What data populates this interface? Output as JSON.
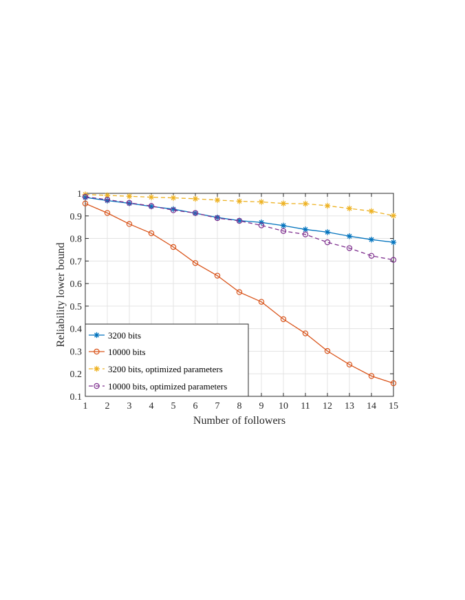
{
  "chart_data": {
    "type": "line",
    "title": "",
    "xlabel": "Number of followers",
    "ylabel": "Reliability lower bound",
    "x": [
      1,
      2,
      3,
      4,
      5,
      6,
      7,
      8,
      9,
      10,
      11,
      12,
      13,
      14,
      15
    ],
    "xlim": [
      1,
      15
    ],
    "ylim": [
      0.1,
      1
    ],
    "xticks": [
      "1",
      "2",
      "3",
      "4",
      "5",
      "6",
      "7",
      "8",
      "9",
      "10",
      "11",
      "12",
      "13",
      "14",
      "15"
    ],
    "yticks": [
      "0.1",
      "0.2",
      "0.3",
      "0.4",
      "0.5",
      "0.6",
      "0.7",
      "0.8",
      "0.9",
      "1"
    ],
    "grid": true,
    "legend_position": "bottom-left",
    "series": [
      {
        "name": "3200 bits",
        "color": "#0072BD",
        "line": "solid",
        "marker": "asterisk",
        "values": [
          0.982,
          0.968,
          0.956,
          0.942,
          0.93,
          0.912,
          0.893,
          0.879,
          0.871,
          0.857,
          0.84,
          0.828,
          0.81,
          0.795,
          0.783
        ]
      },
      {
        "name": "10000 bits",
        "color": "#D95319",
        "line": "solid",
        "marker": "circle",
        "values": [
          0.955,
          0.913,
          0.864,
          0.823,
          0.762,
          0.691,
          0.635,
          0.562,
          0.519,
          0.442,
          0.379,
          0.301,
          0.241,
          0.19,
          0.158
        ]
      },
      {
        "name": "3200 bits, optimized parameters",
        "color": "#EDB120",
        "line": "dashed",
        "marker": "asterisk",
        "values": [
          0.995,
          0.991,
          0.987,
          0.983,
          0.98,
          0.976,
          0.97,
          0.965,
          0.962,
          0.955,
          0.954,
          0.945,
          0.933,
          0.921,
          0.901
        ]
      },
      {
        "name": "10000 bits, optimized parameters",
        "color": "#7E2F8E",
        "line": "dashed",
        "marker": "circle",
        "values": [
          0.985,
          0.972,
          0.958,
          0.944,
          0.925,
          0.913,
          0.89,
          0.878,
          0.858,
          0.833,
          0.818,
          0.783,
          0.757,
          0.723,
          0.705
        ]
      }
    ]
  }
}
